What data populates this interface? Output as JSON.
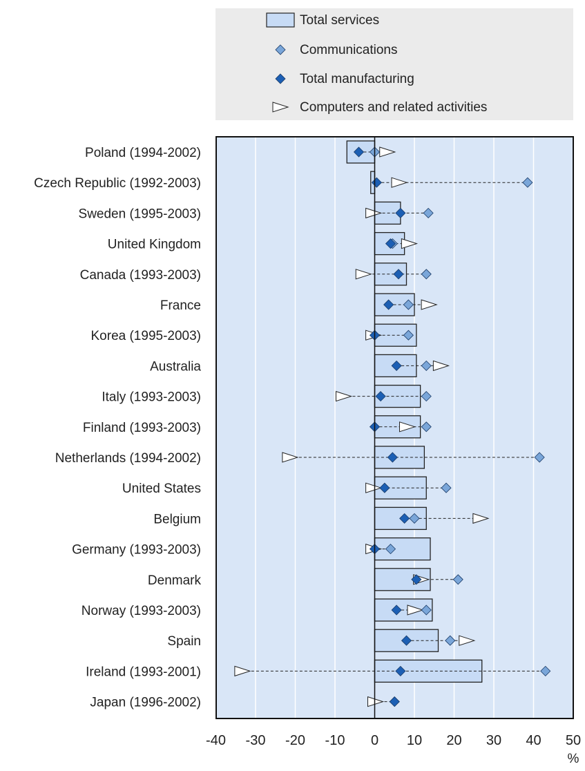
{
  "chart_data": {
    "type": "bar",
    "orientation": "horizontal",
    "categories": [
      "Poland (1994-2002)",
      "Czech Republic (1992-2003)",
      "Sweden (1995-2003)",
      "United Kingdom",
      "Canada (1993-2003)",
      "France",
      "Korea (1995-2003)",
      "Australia",
      "Italy (1993-2003)",
      "Finland (1993-2003)",
      "Netherlands (1994-2002)",
      "United States",
      "Belgium",
      "Germany (1993-2003)",
      "Denmark",
      "Norway (1993-2003)",
      "Spain",
      "Ireland (1993-2001)",
      "Japan (1996-2002)"
    ],
    "series": [
      {
        "name": "Total services",
        "marker": "bar",
        "values": [
          -7,
          -1,
          6.5,
          7.5,
          8,
          10,
          10.5,
          10.5,
          11.5,
          11.5,
          12.5,
          13,
          13,
          14,
          14,
          14.5,
          16,
          27,
          0
        ]
      },
      {
        "name": "Communications",
        "marker": "diamond-light",
        "values": [
          0,
          38.5,
          13.5,
          4.5,
          13,
          8.5,
          8.5,
          13,
          13,
          13,
          41.5,
          18,
          10,
          4,
          21,
          13,
          19,
          43,
          5
        ]
      },
      {
        "name": "Total manufacturing",
        "marker": "diamond-dark",
        "values": [
          -4,
          0.5,
          6.5,
          4,
          6,
          3.5,
          0,
          5.5,
          1.5,
          0,
          4.5,
          2.5,
          7.5,
          0,
          10.5,
          5.5,
          8,
          6.5,
          5
        ]
      },
      {
        "name": "Computers and related activities",
        "marker": "triangle-open",
        "values": [
          3,
          6,
          -0.5,
          8.5,
          -3,
          13.5,
          -0.5,
          16.5,
          -8,
          8,
          -21.5,
          -0.5,
          26.5,
          -0.5,
          11.5,
          10,
          23,
          -33.5,
          0
        ]
      }
    ],
    "x_ticks": [
      "-40",
      "-30",
      "-20",
      "-10",
      "0",
      "10",
      "20",
      "30",
      "40",
      "50"
    ],
    "xlim": [
      -40,
      50
    ],
    "x_unit": "%",
    "grid": "vertical, white",
    "legend_placement": "top",
    "colors": {
      "plot_bg": "#d9e6f7",
      "bar_fill": "#c7dbf5",
      "diamond_light": "#7aa6d9",
      "diamond_dark": "#1c5fb4",
      "triangle_fill": "#ffffff",
      "legend_bg": "#ebebeb"
    }
  }
}
